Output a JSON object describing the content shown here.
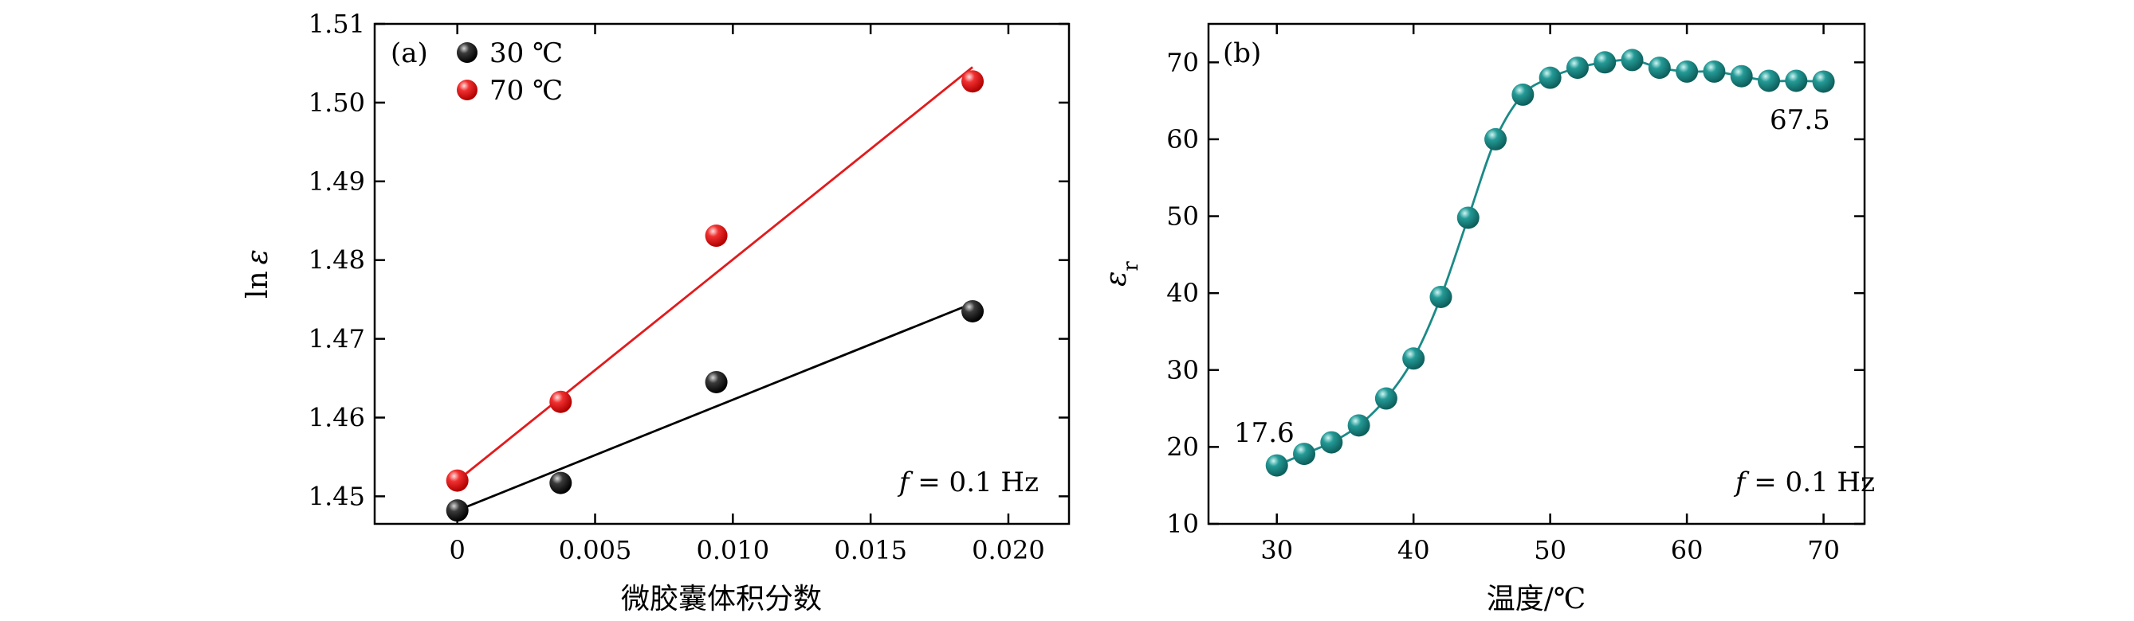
{
  "chart_data": [
    {
      "type": "scatter",
      "panel_label": "(a)",
      "xlabel": "微胶囊体积分数",
      "ylabel_main": "ln",
      "ylabel_sym": "ε",
      "xlim": [
        -0.003,
        0.0222
      ],
      "ylim": [
        1.4465,
        1.51
      ],
      "xticks": [
        0,
        0.005,
        0.01,
        0.015,
        0.02
      ],
      "xtick_labels": [
        "0",
        "0.005",
        "0.010",
        "0.015",
        "0.020"
      ],
      "yticks": [
        1.45,
        1.46,
        1.47,
        1.48,
        1.49,
        1.5,
        1.51
      ],
      "ytick_labels": [
        "1.45",
        "1.46",
        "1.47",
        "1.48",
        "1.49",
        "1.50",
        "1.51"
      ],
      "annotation_f": "f",
      "annotation_rest": " = 0.1  Hz",
      "series": [
        {
          "name": "30 ℃",
          "color": "#000000",
          "highlight": "#bfbfbf",
          "x": [
            0,
            0.00375,
            0.0094,
            0.0187
          ],
          "y": [
            1.4482,
            1.4517,
            1.4645,
            1.4735
          ],
          "fit": {
            "x": [
              0,
              0.0187
            ],
            "y": [
              1.4482,
              1.4745
            ]
          }
        },
        {
          "name": "70 ℃",
          "color": "#e31a1c",
          "highlight": "#ffd0d0",
          "x": [
            0,
            0.00375,
            0.0094,
            0.0187
          ],
          "y": [
            1.452,
            1.462,
            1.4831,
            1.5027
          ],
          "fit": {
            "x": [
              0,
              0.0187
            ],
            "y": [
              1.452,
              1.5045
            ]
          }
        }
      ]
    },
    {
      "type": "line",
      "panel_label": "(b)",
      "xlabel": "温度/℃",
      "ylabel_main": "ε",
      "ylabel_sub": "r",
      "xlim": [
        25,
        73
      ],
      "ylim": [
        10,
        75
      ],
      "xticks": [
        30,
        40,
        50,
        60,
        70
      ],
      "xtick_labels": [
        "30",
        "40",
        "50",
        "60",
        "70"
      ],
      "yticks": [
        10,
        20,
        30,
        40,
        50,
        60,
        70
      ],
      "ytick_labels": [
        "10",
        "20",
        "30",
        "40",
        "50",
        "60",
        "70"
      ],
      "annotation_f": "f",
      "annotation_rest": " = 0.1  Hz",
      "start_label": "17.6",
      "end_label": "67.5",
      "series": [
        {
          "name": "εr",
          "color": "#1a8a87",
          "highlight": "#bff0ee",
          "x": [
            30,
            32,
            34,
            36,
            38,
            40,
            42,
            44,
            46,
            48,
            50,
            52,
            54,
            56,
            58,
            60,
            62,
            64,
            66,
            68,
            70
          ],
          "y": [
            17.6,
            19.1,
            20.6,
            22.8,
            26.3,
            31.5,
            39.5,
            49.8,
            60,
            65.8,
            68,
            69.3,
            70,
            70.3,
            69.3,
            68.8,
            68.8,
            68.2,
            67.6,
            67.6,
            67.5
          ]
        }
      ]
    }
  ]
}
